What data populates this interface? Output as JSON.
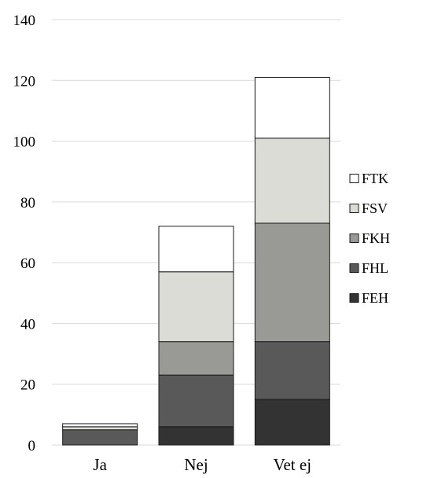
{
  "chart_data": {
    "type": "bar",
    "stacked": true,
    "categories": [
      "Ja",
      "Nej",
      "Vet ej"
    ],
    "series": [
      {
        "name": "FEH",
        "color": "#333333",
        "values": [
          0,
          6,
          15
        ]
      },
      {
        "name": "FHL",
        "color": "#595959",
        "values": [
          5,
          17,
          19
        ]
      },
      {
        "name": "FKH",
        "color": "#999a95",
        "values": [
          0,
          11,
          39
        ]
      },
      {
        "name": "FSV",
        "color": "#dcdcd6",
        "values": [
          1,
          23,
          28
        ]
      },
      {
        "name": "FTK",
        "color": "#ffffff",
        "values": [
          1,
          15,
          20
        ]
      }
    ],
    "ylim": [
      0,
      140
    ],
    "yticks": [
      0,
      20,
      40,
      60,
      80,
      100,
      120,
      140
    ],
    "grid": true,
    "legend_position": "right",
    "legend_order": [
      "FTK",
      "FSV",
      "FKH",
      "FHL",
      "FEH"
    ],
    "title": "",
    "xlabel": "",
    "ylabel": ""
  }
}
